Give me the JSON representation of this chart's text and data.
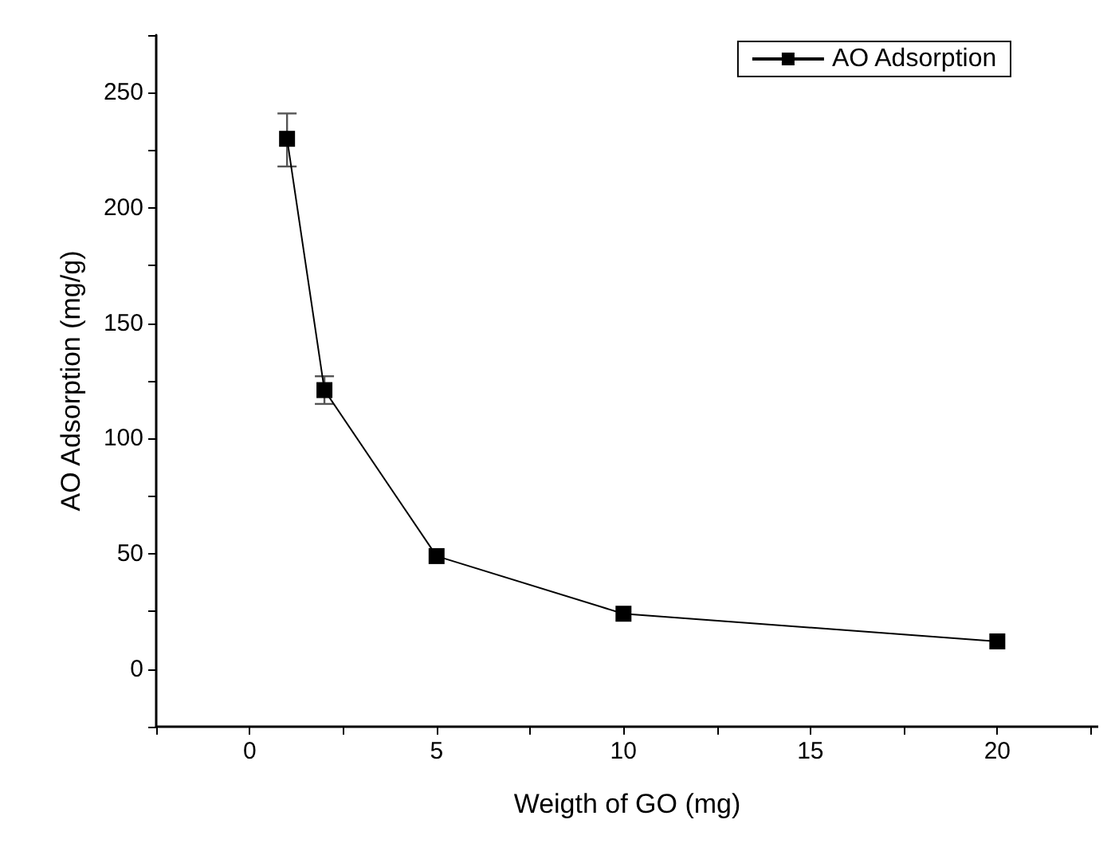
{
  "chart_data": {
    "type": "line",
    "xlabel": "Weigth of GO (mg)",
    "ylabel": "AO Adsorption (mg/g)",
    "x": [
      1,
      2,
      5,
      10,
      20
    ],
    "series": [
      {
        "name": "AO Adsorption",
        "color": "#000000",
        "values": [
          230,
          121,
          49,
          24,
          12
        ],
        "errors": [
          [
            218,
            241
          ],
          [
            115,
            127
          ],
          null,
          null,
          null
        ]
      }
    ],
    "xlim": [
      -2.5,
      22.7
    ],
    "ylim": [
      -25,
      275
    ],
    "xticks": [
      {
        "value": -2.5,
        "label": null
      },
      0,
      {
        "value": 2.5,
        "label": null
      },
      5,
      {
        "value": 7.5,
        "label": null
      },
      10,
      {
        "value": 12.5,
        "label": null
      },
      15,
      {
        "value": 17.5,
        "label": null
      },
      20,
      {
        "value": 22.5,
        "label": null
      }
    ],
    "yticks": [
      {
        "value": -25,
        "label": null
      },
      0,
      {
        "value": 25,
        "label": null
      },
      50,
      {
        "value": 75,
        "label": null
      },
      100,
      {
        "value": 125,
        "label": null
      },
      150,
      {
        "value": 175,
        "label": null
      },
      200,
      {
        "value": 225,
        "label": null
      },
      250,
      {
        "value": 275,
        "label": null
      }
    ],
    "marker": "square",
    "line_style": "solid",
    "legend": "top right",
    "grid": false
  }
}
